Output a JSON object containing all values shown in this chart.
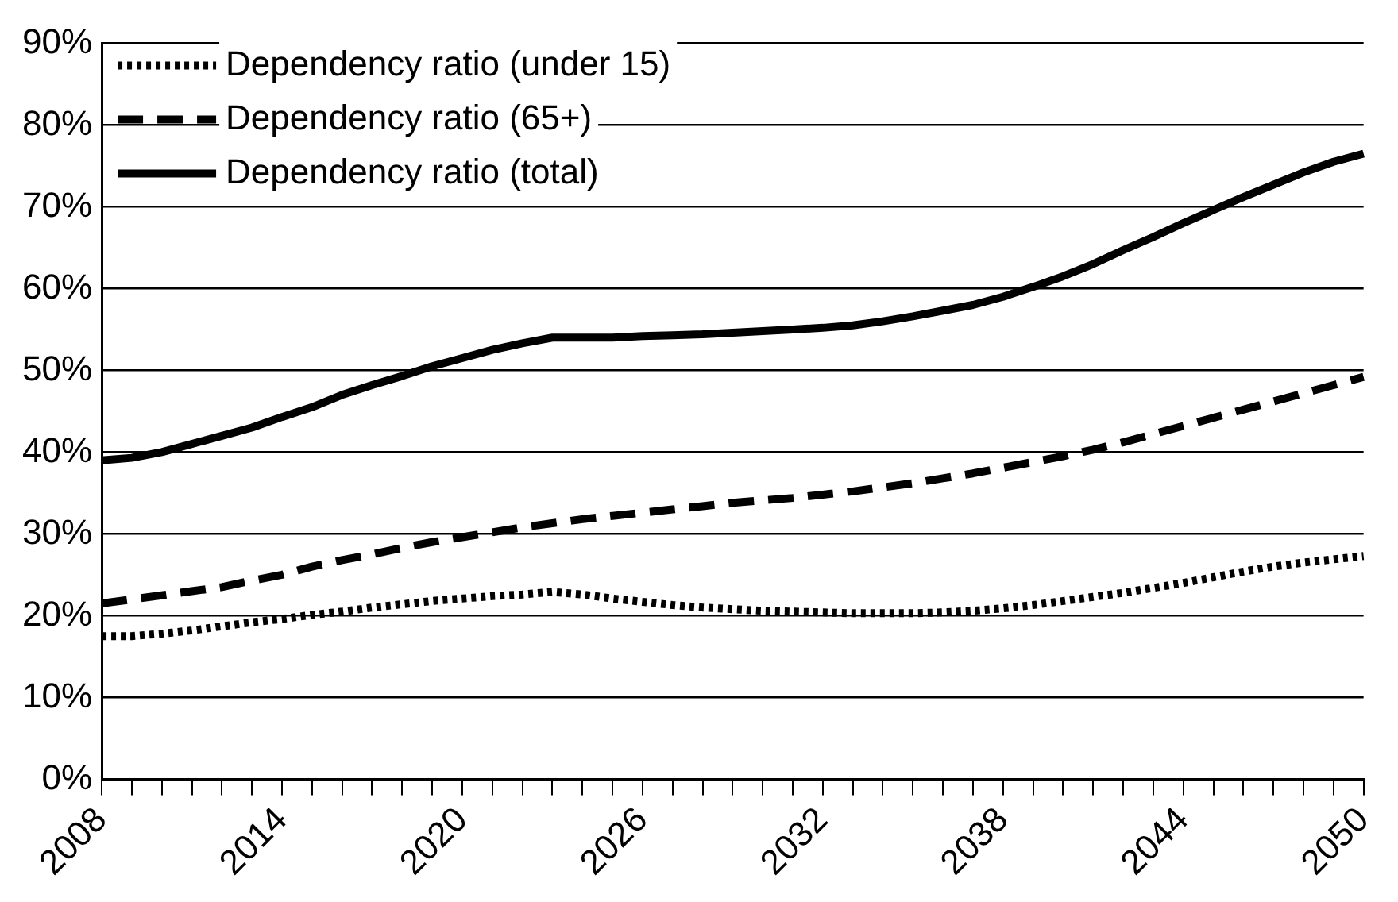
{
  "chart_data": {
    "type": "line",
    "categories": [
      "2008",
      null,
      null,
      null,
      null,
      null,
      "2014",
      null,
      null,
      null,
      null,
      null,
      "2020",
      null,
      null,
      null,
      null,
      null,
      "2026",
      null,
      null,
      null,
      null,
      null,
      "2032",
      null,
      null,
      null,
      null,
      null,
      "2038",
      null,
      null,
      null,
      null,
      null,
      "2044",
      null,
      null,
      null,
      null,
      null,
      "2050"
    ],
    "series": [
      {
        "name": "Dependency ratio (under 15)",
        "color": "#000000",
        "line_style": "dotted",
        "values": [
          17.5,
          17.5,
          17.8,
          18.2,
          18.7,
          19.2,
          19.6,
          20.1,
          20.5,
          21,
          21.4,
          21.8,
          22.1,
          22.4,
          22.6,
          22.9,
          22.6,
          22.1,
          21.7,
          21.3,
          21,
          20.8,
          20.6,
          20.5,
          20.4,
          20.3,
          20.3,
          20.3,
          20.4,
          20.6,
          20.9,
          21.3,
          21.8,
          22.3,
          22.8,
          23.4,
          24,
          24.7,
          25.4,
          26,
          26.5,
          26.9,
          27.3
        ]
      },
      {
        "name": "Dependency ratio (65+)",
        "color": "#000000",
        "line_style": "dashed",
        "values": [
          21.5,
          22,
          22.5,
          23,
          23.5,
          24.3,
          25,
          26,
          26.8,
          27.5,
          28.3,
          29,
          29.6,
          30.2,
          30.8,
          31.3,
          31.8,
          32.2,
          32.6,
          33,
          33.4,
          33.8,
          34.1,
          34.4,
          34.8,
          35.2,
          35.7,
          36.2,
          36.8,
          37.4,
          38.1,
          38.8,
          39.5,
          40.3,
          41.2,
          42.2,
          43.2,
          44.2,
          45.2,
          46.2,
          47.2,
          48.2,
          49.2
        ]
      },
      {
        "name": "Dependency ratio (total)",
        "color": "#000000",
        "line_style": "solid",
        "values": [
          39,
          39.3,
          40,
          41,
          42,
          43,
          44.3,
          45.5,
          47,
          48.2,
          49.3,
          50.5,
          51.5,
          52.5,
          53.3,
          54,
          54,
          54,
          54.2,
          54.3,
          54.4,
          54.6,
          54.8,
          55,
          55.2,
          55.5,
          56,
          56.6,
          57.3,
          58,
          59,
          60.2,
          61.5,
          63,
          64.7,
          66.3,
          68,
          69.6,
          71.2,
          72.7,
          74.2,
          75.5,
          76.5
        ]
      }
    ],
    "ylim": [
      0,
      90
    ],
    "yticks": [
      {
        "value": 0,
        "label": "0%"
      },
      {
        "value": 10,
        "label": "10%"
      },
      {
        "value": 20,
        "label": "20%"
      },
      {
        "value": 30,
        "label": "30%"
      },
      {
        "value": 40,
        "label": "40%"
      },
      {
        "value": 50,
        "label": "50%"
      },
      {
        "value": 60,
        "label": "60%"
      },
      {
        "value": 70,
        "label": "70%"
      },
      {
        "value": 80,
        "label": "80%"
      },
      {
        "value": 90,
        "label": "90%"
      }
    ],
    "grid": "y",
    "legend": "top left",
    "marker": "none"
  }
}
